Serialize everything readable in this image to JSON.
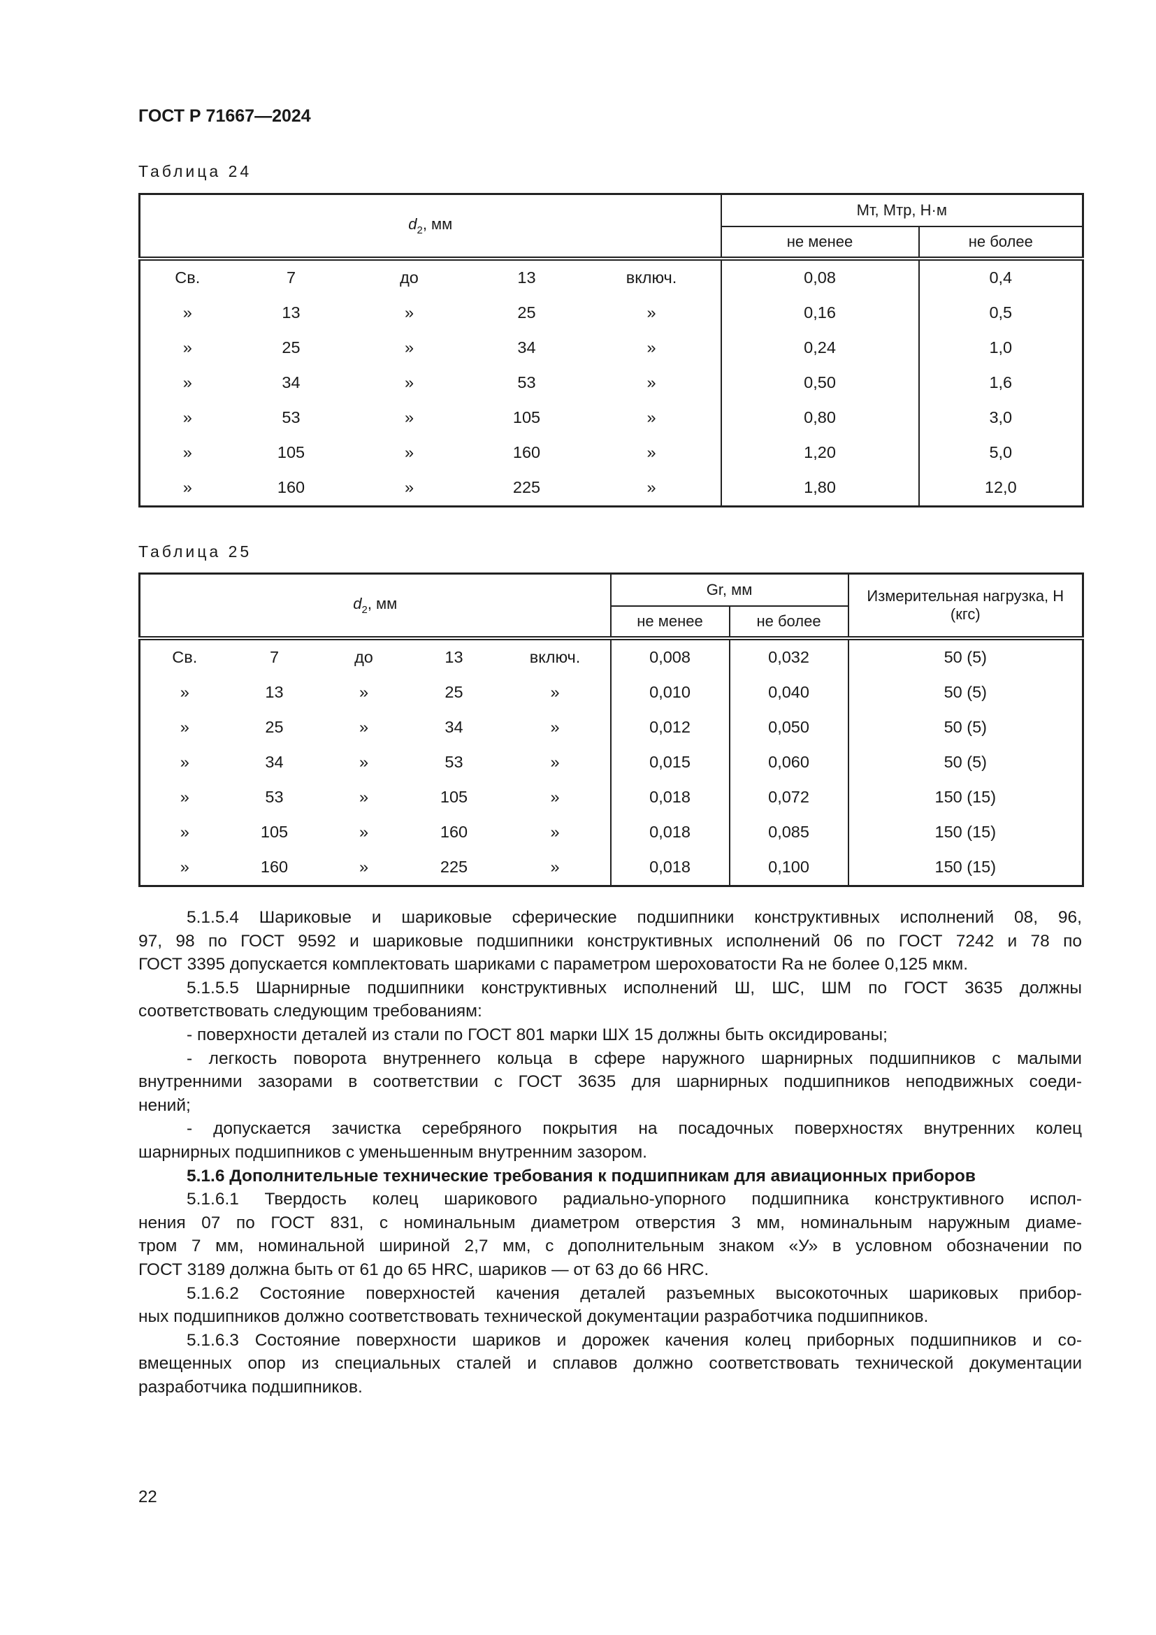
{
  "header": {
    "doc_id": "ГОСТ Р 71667—2024"
  },
  "table24": {
    "caption": "Таблица 24",
    "head": {
      "d2": "d",
      "d2_sub": "2",
      "d2_unit": ", мм",
      "group": "Mт, Mтр, Н·м",
      "min": "не менее",
      "max": "не более"
    },
    "rows": [
      [
        "Св.",
        "7",
        "до",
        "13",
        "включ.",
        "0,08",
        "0,4"
      ],
      [
        "»",
        "13",
        "»",
        "25",
        "»",
        "0,16",
        "0,5"
      ],
      [
        "»",
        "25",
        "»",
        "34",
        "»",
        "0,24",
        "1,0"
      ],
      [
        "»",
        "34",
        "»",
        "53",
        "»",
        "0,50",
        "1,6"
      ],
      [
        "»",
        "53",
        "»",
        "105",
        "»",
        "0,80",
        "3,0"
      ],
      [
        "»",
        "105",
        "»",
        "160",
        "»",
        "1,20",
        "5,0"
      ],
      [
        "»",
        "160",
        "»",
        "225",
        "»",
        "1,80",
        "12,0"
      ]
    ]
  },
  "table25": {
    "caption": "Таблица 25",
    "head": {
      "d2": "d",
      "d2_sub": "2",
      "d2_unit": ", мм",
      "group": "Gr, мм",
      "min": "не менее",
      "max": "не более",
      "load": "Измерительная нагрузка, Н (кгс)"
    },
    "rows": [
      [
        "Св.",
        "7",
        "до",
        "13",
        "включ.",
        "0,008",
        "0,032",
        "50 (5)"
      ],
      [
        "»",
        "13",
        "»",
        "25",
        "»",
        "0,010",
        "0,040",
        "50 (5)"
      ],
      [
        "»",
        "25",
        "»",
        "34",
        "»",
        "0,012",
        "0,050",
        "50 (5)"
      ],
      [
        "»",
        "34",
        "»",
        "53",
        "»",
        "0,015",
        "0,060",
        "50 (5)"
      ],
      [
        "»",
        "53",
        "»",
        "105",
        "»",
        "0,018",
        "0,072",
        "150 (15)"
      ],
      [
        "»",
        "105",
        "»",
        "160",
        "»",
        "0,018",
        "0,085",
        "150 (15)"
      ],
      [
        "»",
        "160",
        "»",
        "225",
        "»",
        "0,018",
        "0,100",
        "150 (15)"
      ]
    ]
  },
  "paragraphs": [
    {
      "lines": [
        "5.1.5.4 Шариковые и шариковые сферические подшипники конструктивных исполнений 08, 96,",
        "97, 98 по ГОСТ 9592 и шариковые подшипники конструктивных исполнений 06 по ГОСТ 7242 и 78 по",
        "ГОСТ 3395 допускается комплектовать шариками с параметром шероховатости Ra не более 0,125 мкм."
      ]
    },
    {
      "lines": [
        "5.1.5.5 Шарнирные подшипники конструктивных исполнений Ш, ШС, ШМ по ГОСТ 3635 должны",
        "соответствовать следующим требованиям:"
      ]
    },
    {
      "lines": [
        "- поверхности деталей из стали по ГОСТ 801 марки ШХ 15 должны быть оксидированы;"
      ]
    },
    {
      "lines": [
        "- легкость поворота внутреннего кольца в сфере наружного шарнирных подшипников с малыми",
        "внутренними зазорами в соответствии с ГОСТ 3635 для шарнирных подшипников неподвижных соеди-",
        "нений;"
      ]
    },
    {
      "lines": [
        "- допускается зачистка серебряного покрытия на посадочных поверхностях внутренних колец",
        "шарнирных подшипников с уменьшенным внутренним зазором."
      ]
    },
    {
      "bold": true,
      "lines": [
        "5.1.6 Дополнительные технические требования к подшипникам для авиационных приборов"
      ]
    },
    {
      "lines": [
        "5.1.6.1 Твердость колец шарикового радиально-упорного подшипника конструктивного испол-",
        "нения 07 по ГОСТ 831, с номинальным диаметром отверстия 3 мм, номинальным наружным диаме-",
        "тром 7 мм, номинальной шириной 2,7 мм, с дополнительным знаком «У» в условном обозначении по",
        "ГОСТ 3189 должна быть от 61 до 65 HRC, шариков — от 63 до 66 HRC."
      ]
    },
    {
      "lines": [
        "5.1.6.2 Состояние поверхностей качения деталей разъемных высокоточных шариковых прибор-",
        "ных подшипников должно соответствовать технической документации разработчика подшипников."
      ]
    },
    {
      "lines": [
        "5.1.6.3 Состояние поверхности шариков и дорожек качения колец приборных подшипников и со-",
        "вмещенных опор из специальных сталей и сплавов должно соответствовать технической документации",
        "разработчика подшипников."
      ]
    }
  ],
  "page_number": "22"
}
